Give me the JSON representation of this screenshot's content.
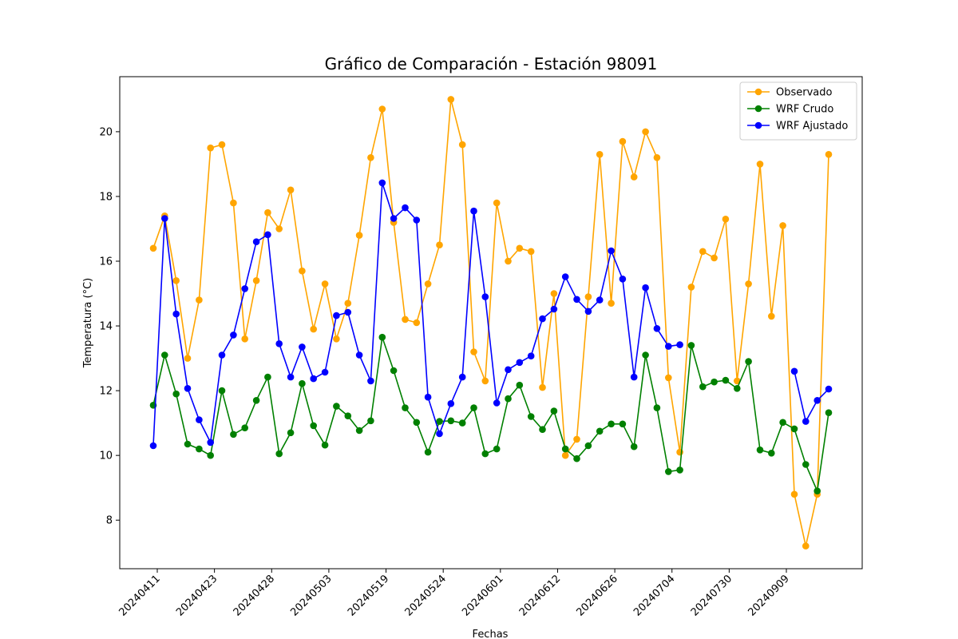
{
  "chart_data": {
    "type": "line",
    "title": "Gráfico de Comparación - Estación 98091",
    "xlabel": "Fechas",
    "ylabel": "Temperatura (°C)",
    "ylim": [
      6.5,
      21.7
    ],
    "yticks": [
      8,
      10,
      12,
      14,
      16,
      18,
      20
    ],
    "x_tick_labels": [
      "20240411",
      "20240423",
      "20240428",
      "20240503",
      "20240519",
      "20240524",
      "20240601",
      "20240612",
      "20240626",
      "20240704",
      "20240730",
      "20240909"
    ],
    "grid": false,
    "legend_position": "top-right",
    "series": [
      {
        "name": "Observado",
        "color": "#ffa500",
        "values": [
          16.4,
          17.4,
          15.4,
          13.0,
          14.8,
          19.5,
          19.6,
          17.8,
          13.6,
          15.4,
          17.5,
          17.0,
          18.2,
          15.7,
          13.9,
          15.3,
          13.6,
          14.7,
          16.8,
          19.2,
          20.7,
          17.2,
          14.2,
          14.1,
          15.3,
          16.5,
          21.0,
          19.6,
          13.2,
          12.3,
          17.8,
          16.0,
          16.4,
          16.3,
          12.1,
          15.0,
          10.0,
          10.5,
          14.9,
          19.3,
          14.7,
          19.7,
          18.6,
          20.0,
          19.2,
          12.4,
          10.1,
          15.2,
          16.3,
          16.1,
          17.3,
          12.3,
          15.3,
          19.0,
          14.3,
          17.1,
          8.8,
          7.2,
          8.8,
          19.3
        ]
      },
      {
        "name": "WRF Crudo",
        "color": "#008000",
        "values": [
          11.55,
          13.1,
          11.9,
          10.35,
          10.2,
          10.0,
          12.0,
          10.65,
          10.85,
          11.7,
          12.42,
          10.05,
          10.7,
          12.22,
          10.92,
          10.32,
          11.52,
          11.22,
          10.77,
          11.07,
          13.65,
          12.62,
          11.47,
          11.02,
          10.1,
          11.05,
          11.07,
          11.0,
          11.47,
          10.05,
          10.2,
          11.75,
          12.17,
          11.2,
          10.8,
          11.37,
          10.2,
          9.9,
          10.3,
          10.75,
          10.97,
          10.97,
          10.27,
          13.1,
          11.47,
          9.5,
          9.55,
          13.4,
          12.12,
          12.27,
          12.32,
          12.07,
          12.9,
          10.17,
          10.07,
          11.02,
          10.82,
          9.72,
          8.9,
          11.32
        ]
      },
      {
        "name": "WRF Ajustado",
        "color": "#0000ff",
        "values": [
          10.3,
          17.32,
          14.37,
          12.07,
          11.1,
          10.4,
          13.1,
          13.72,
          15.15,
          16.6,
          16.82,
          13.45,
          12.42,
          13.35,
          12.37,
          12.57,
          14.32,
          14.42,
          13.1,
          12.3,
          18.42,
          17.32,
          17.65,
          17.27,
          11.8,
          10.67,
          11.6,
          12.42,
          17.55,
          14.9,
          11.62,
          12.65,
          12.87,
          13.07,
          14.22,
          14.52,
          15.52,
          14.82,
          14.45,
          14.8,
          16.32,
          15.45,
          12.42,
          15.18,
          13.92,
          13.37,
          13.42,
          null,
          null,
          null,
          null,
          null,
          null,
          null,
          null,
          null,
          12.6,
          11.05,
          11.7,
          12.05
        ]
      }
    ]
  }
}
